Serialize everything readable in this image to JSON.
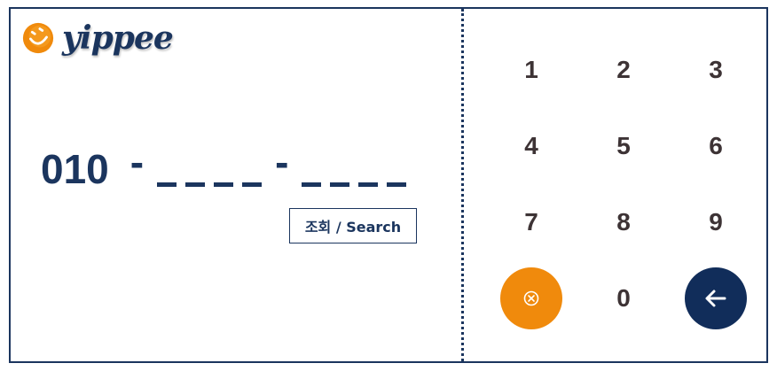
{
  "brand": {
    "name": "yippee",
    "logo_icon": "smiley-face-icon",
    "colors": {
      "navy": "#1b355e",
      "orange": "#f08a0c",
      "key_text": "#3d3335"
    }
  },
  "phone": {
    "prefix": "010",
    "separator": "-",
    "group1_slots": 4,
    "group2_slots": 4
  },
  "search": {
    "label": "조회 / Search"
  },
  "keypad": {
    "keys": [
      "1",
      "2",
      "3",
      "4",
      "5",
      "6",
      "7",
      "8",
      "9"
    ],
    "zero": "0",
    "clear_icon": "clear-circle-x-icon",
    "back_icon": "arrow-left-icon"
  }
}
